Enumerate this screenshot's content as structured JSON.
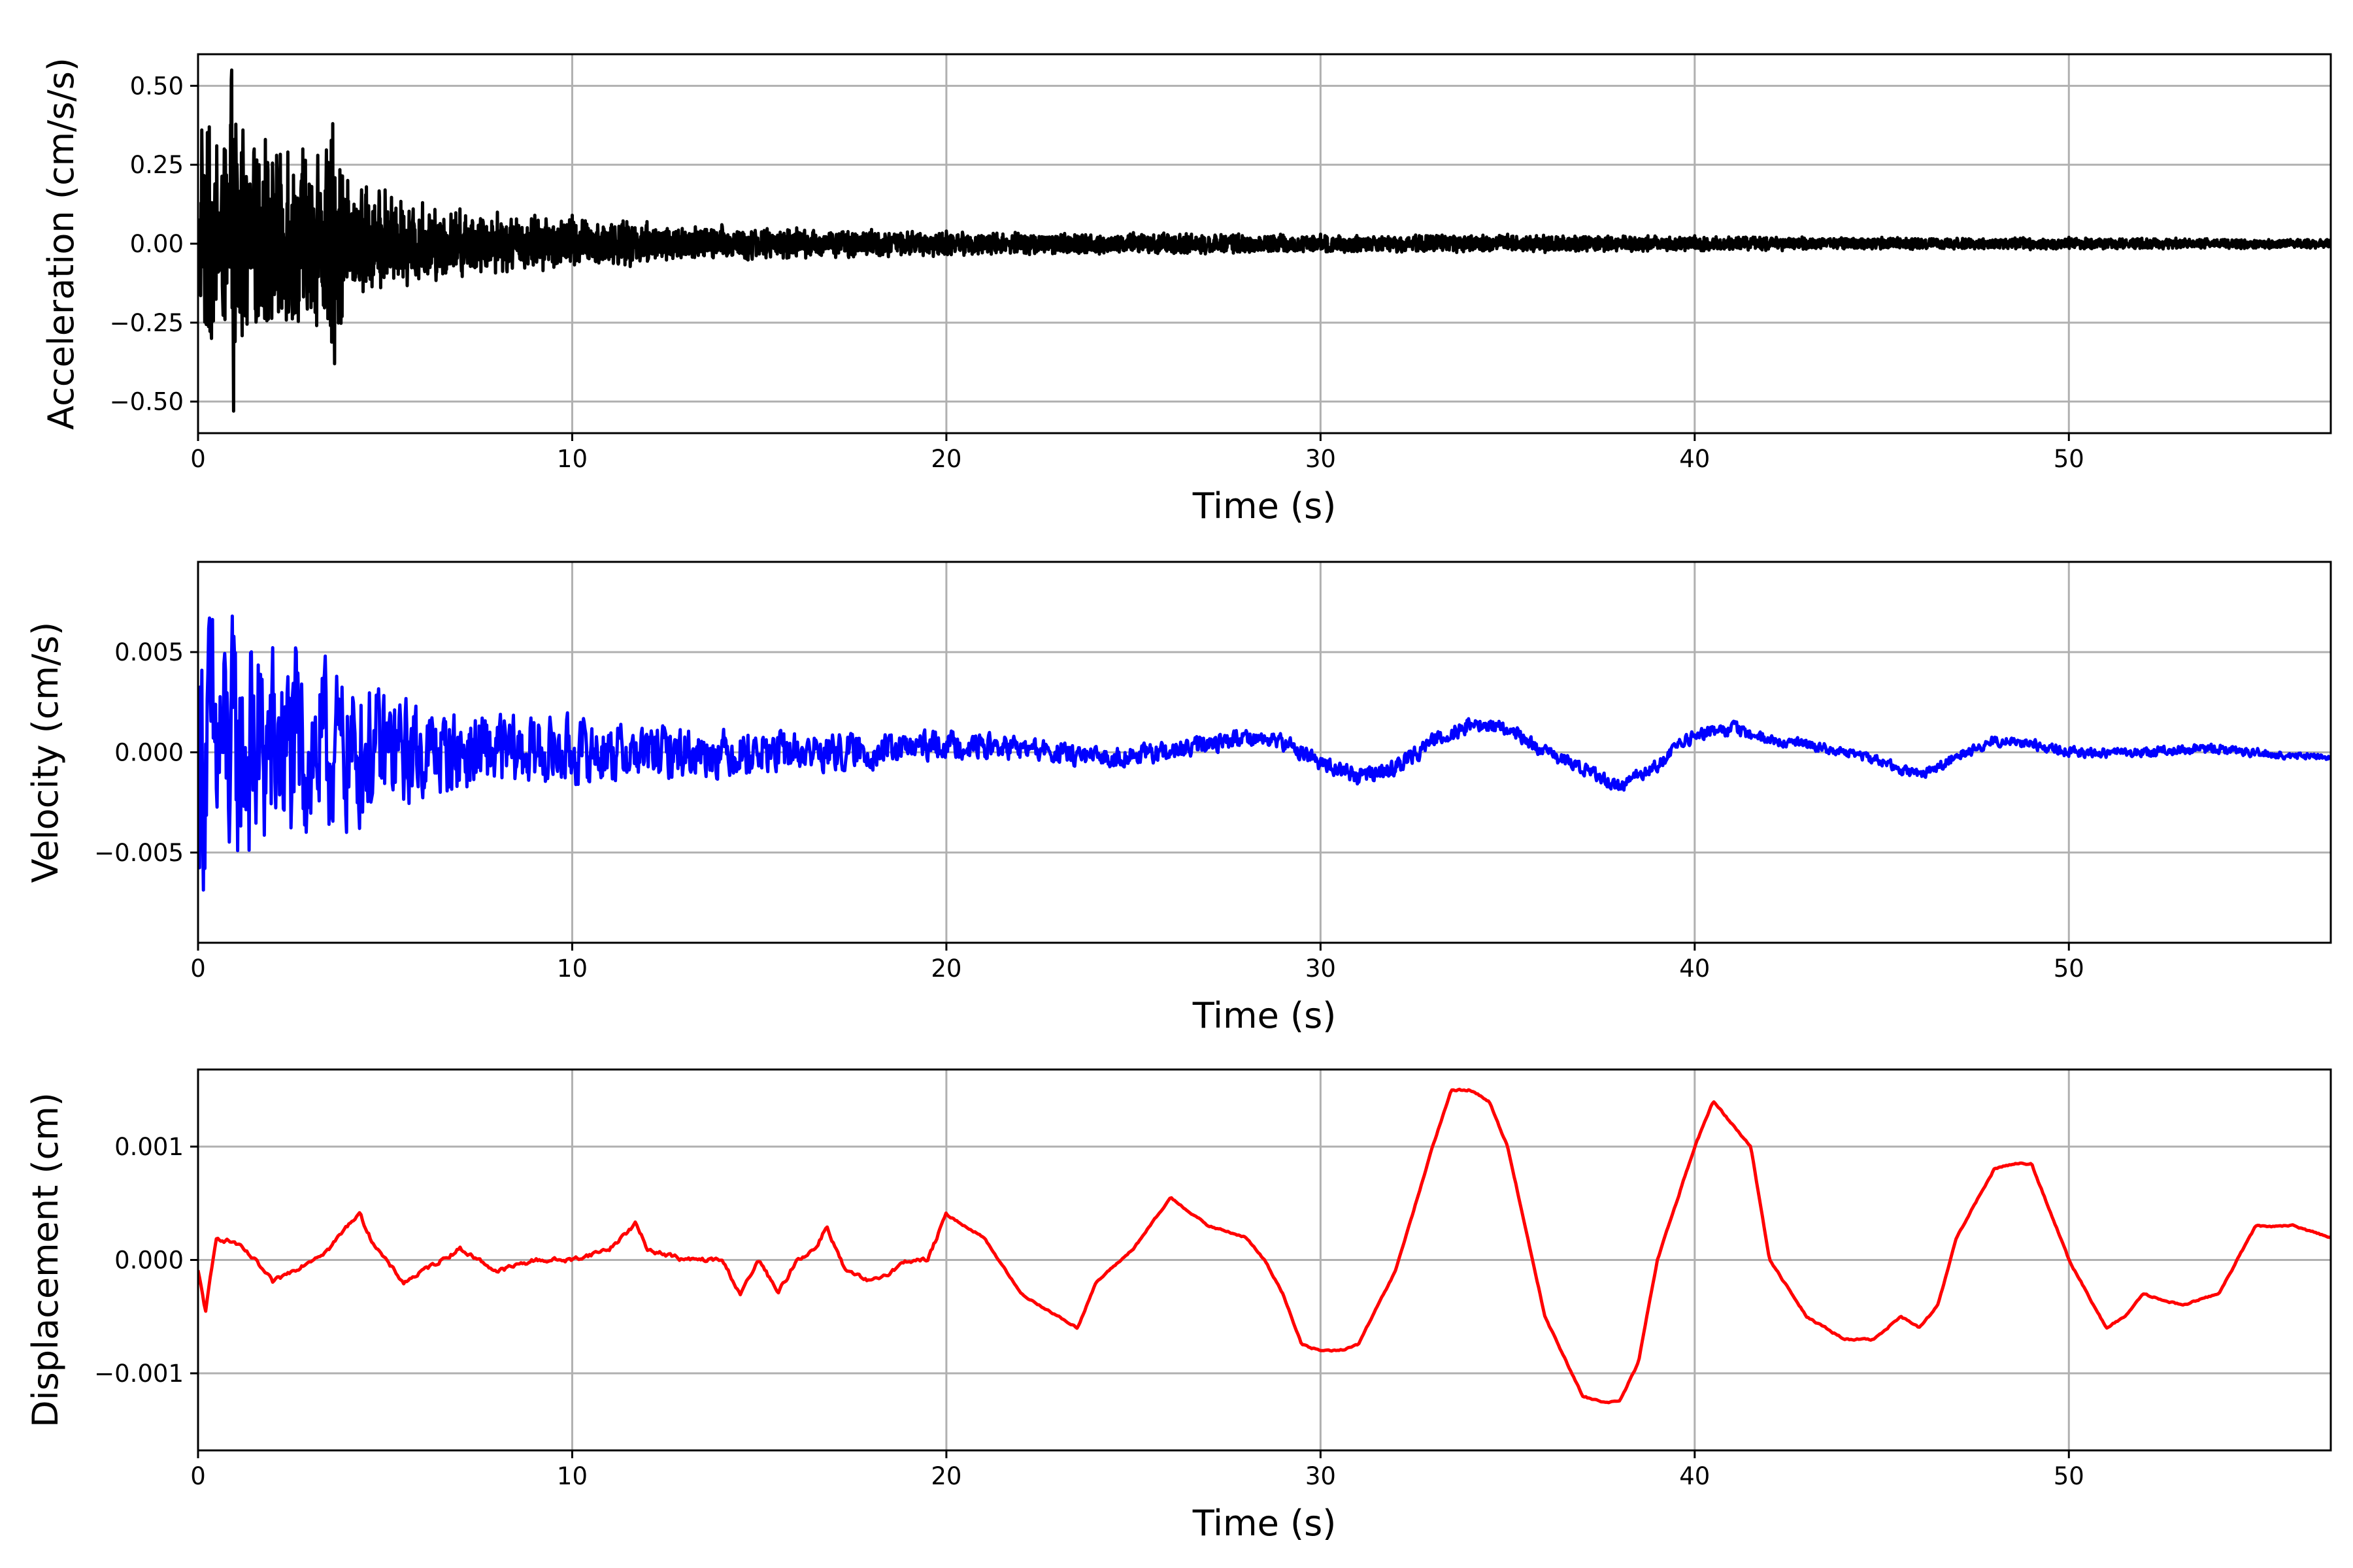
{
  "chart_data": [
    {
      "type": "line",
      "xlabel": "Time (s)",
      "ylabel": "Acceleration (cm/s/s)",
      "xlim": [
        0,
        57
      ],
      "ylim": [
        -0.6,
        0.6
      ],
      "xticks": [
        0,
        10,
        20,
        30,
        40,
        50
      ],
      "xtick_labels": [
        "0",
        "10",
        "20",
        "30",
        "40",
        "50"
      ],
      "yticks": [
        0.5,
        0.25,
        0.0,
        -0.25,
        -0.5
      ],
      "ytick_labels": [
        "0.50",
        "0.25",
        "0.00",
        "−0.25",
        "−0.50"
      ],
      "grid": true,
      "series": [
        {
          "color": "#000000",
          "signal": "decaying-noise",
          "x": [
            0,
            0.1,
            0.3,
            0.5,
            0.7,
            0.9,
            0.92,
            0.95,
            1.2,
            1.5,
            1.8,
            2.1,
            2.4,
            2.8,
            3.2,
            3.6,
            3.65,
            4.0,
            4.5,
            5.0,
            6.0,
            7.0,
            8.0,
            9.0,
            10.0,
            12.0,
            14.0,
            16.0,
            18.0,
            20.0,
            25.0,
            30.0,
            35.0,
            40.0,
            45.0,
            50.0,
            57.0
          ],
          "y": [
            0.0,
            0.36,
            0.37,
            0.31,
            0.3,
            0.55,
            0.0,
            -0.53,
            0.36,
            0.3,
            0.33,
            0.28,
            0.29,
            0.3,
            0.28,
            0.38,
            -0.38,
            0.2,
            0.18,
            0.17,
            0.13,
            0.11,
            0.1,
            0.09,
            0.09,
            0.07,
            0.06,
            0.05,
            0.045,
            0.04,
            0.035,
            0.03,
            0.03,
            0.025,
            0.02,
            0.02,
            0.015
          ]
        }
      ]
    },
    {
      "type": "line",
      "xlabel": "Time (s)",
      "ylabel": "Velocity (cm/s)",
      "xlim": [
        0,
        57
      ],
      "ylim": [
        -0.0095,
        0.0095
      ],
      "xticks": [
        0,
        10,
        20,
        30,
        40,
        50
      ],
      "xtick_labels": [
        "0",
        "10",
        "20",
        "30",
        "40",
        "50"
      ],
      "yticks": [
        0.005,
        0.0,
        -0.005
      ],
      "ytick_labels": [
        "0.005",
        "0.000",
        "−0.005"
      ],
      "grid": true,
      "series": [
        {
          "color": "#0000ff",
          "signal": "noise-around-trend",
          "x": [
            0,
            1,
            2,
            4,
            6,
            8,
            10,
            12,
            14,
            16,
            18,
            20,
            22,
            24,
            26,
            28,
            29,
            30,
            31,
            32,
            33,
            34,
            35,
            36,
            37,
            38,
            39,
            40,
            41,
            42,
            43,
            44,
            45,
            46,
            47,
            48,
            49,
            50,
            52,
            54,
            56,
            57
          ],
          "y": [
            0.0,
            0.0,
            0.0,
            0.0,
            0.0,
            0.0,
            0.0,
            0.0,
            0.0,
            0.0,
            0.0,
            0.0004,
            0.0002,
            -0.0003,
            0.0,
            0.0008,
            0.0005,
            -0.0005,
            -0.0012,
            -0.0008,
            0.0006,
            0.0014,
            0.0012,
            0.0,
            -0.0008,
            -0.0017,
            -0.0006,
            0.0009,
            0.0012,
            0.0006,
            0.0004,
            0.0,
            -0.0004,
            -0.0012,
            -0.0002,
            0.0006,
            0.0004,
            0.0,
            0.0,
            0.0002,
            -0.0002,
            -0.0002
          ],
          "envelope": [
            0.0085,
            0.0075,
            0.0065,
            0.0045,
            0.0028,
            0.0022,
            0.002,
            0.0016,
            0.0014,
            0.0012,
            0.001,
            0.0008,
            0.0007,
            0.0006,
            0.0006,
            0.0005,
            0.0005,
            0.0005,
            0.0005,
            0.0005,
            0.0005,
            0.0005,
            0.0004,
            0.0004,
            0.0004,
            0.0004,
            0.0004,
            0.0004,
            0.0004,
            0.0003,
            0.0003,
            0.0003,
            0.0003,
            0.0003,
            0.0003,
            0.0003,
            0.0003,
            0.0003,
            0.0003,
            0.0003,
            0.0002,
            0.0002
          ]
        }
      ]
    },
    {
      "type": "line",
      "xlabel": "Time (s)",
      "ylabel": "Displacement (cm)",
      "xlim": [
        0,
        57
      ],
      "ylim": [
        -0.00168,
        0.00168
      ],
      "xticks": [
        0,
        10,
        20,
        30,
        40,
        50
      ],
      "xtick_labels": [
        "0",
        "10",
        "20",
        "30",
        "40",
        "50"
      ],
      "yticks": [
        0.001,
        0.0,
        -0.001
      ],
      "ytick_labels": [
        "0.001",
        "0.000",
        "−0.001"
      ],
      "grid": true,
      "series": [
        {
          "color": "#ff0000",
          "signal": "smooth",
          "x": [
            0,
            0.2,
            0.5,
            1.0,
            1.5,
            2.0,
            2.5,
            3.0,
            3.5,
            4.0,
            4.3,
            4.6,
            5.0,
            5.5,
            6.0,
            7.0,
            8.0,
            9.0,
            10.0,
            11.0,
            11.7,
            12.0,
            13.0,
            14.0,
            14.5,
            15.0,
            15.5,
            16.0,
            16.5,
            16.8,
            17.3,
            18.0,
            19.0,
            19.5,
            20.0,
            21.0,
            22.0,
            23.0,
            23.5,
            24.0,
            25.0,
            26.0,
            27.0,
            28.0,
            28.5,
            29.0,
            29.5,
            30.0,
            30.5,
            31.0,
            32.0,
            33.0,
            33.5,
            34.0,
            34.5,
            35.0,
            36.0,
            37.0,
            37.5,
            38.0,
            38.5,
            39.0,
            40.0,
            40.5,
            41.0,
            41.5,
            42.0,
            43.0,
            44.0,
            44.8,
            45.5,
            46.0,
            46.5,
            47.0,
            48.0,
            48.5,
            49.0,
            50.0,
            51.0,
            51.5,
            52.0,
            53.0,
            54.0,
            55.0,
            56.0,
            57.0
          ],
          "y": [
            -0.0001,
            -0.00045,
            0.0002,
            0.00015,
            0.0,
            -0.0002,
            -0.0001,
            0.0,
            0.0001,
            0.0003,
            0.00042,
            0.0002,
            0.0,
            -0.0002,
            -0.0001,
            0.0001,
            -0.0001,
            0.0,
            0.0,
            0.0001,
            0.00032,
            0.0001,
            0.0,
            0.0,
            -0.0003,
            0.0,
            -0.0003,
            0.0,
            0.0001,
            0.0003,
            -0.0001,
            -0.0002,
            0.0,
            0.0,
            0.0004,
            0.0002,
            -0.0003,
            -0.0005,
            -0.0006,
            -0.0002,
            0.0001,
            0.00055,
            0.0003,
            0.0002,
            0.0,
            -0.0003,
            -0.00075,
            -0.0008,
            -0.0008,
            -0.00075,
            -0.0001,
            0.001,
            0.0015,
            0.0015,
            0.0014,
            0.001,
            -0.0005,
            -0.0012,
            -0.00125,
            -0.00125,
            -0.0009,
            0.0,
            0.001,
            0.0014,
            0.0012,
            0.001,
            0.0,
            -0.0005,
            -0.0007,
            -0.0007,
            -0.0005,
            -0.0006,
            -0.0004,
            0.0002,
            0.0008,
            0.00085,
            0.00085,
            0.0,
            -0.0006,
            -0.0005,
            -0.0003,
            -0.0004,
            -0.0003,
            0.0003,
            0.0003,
            0.0002
          ]
        }
      ]
    }
  ]
}
